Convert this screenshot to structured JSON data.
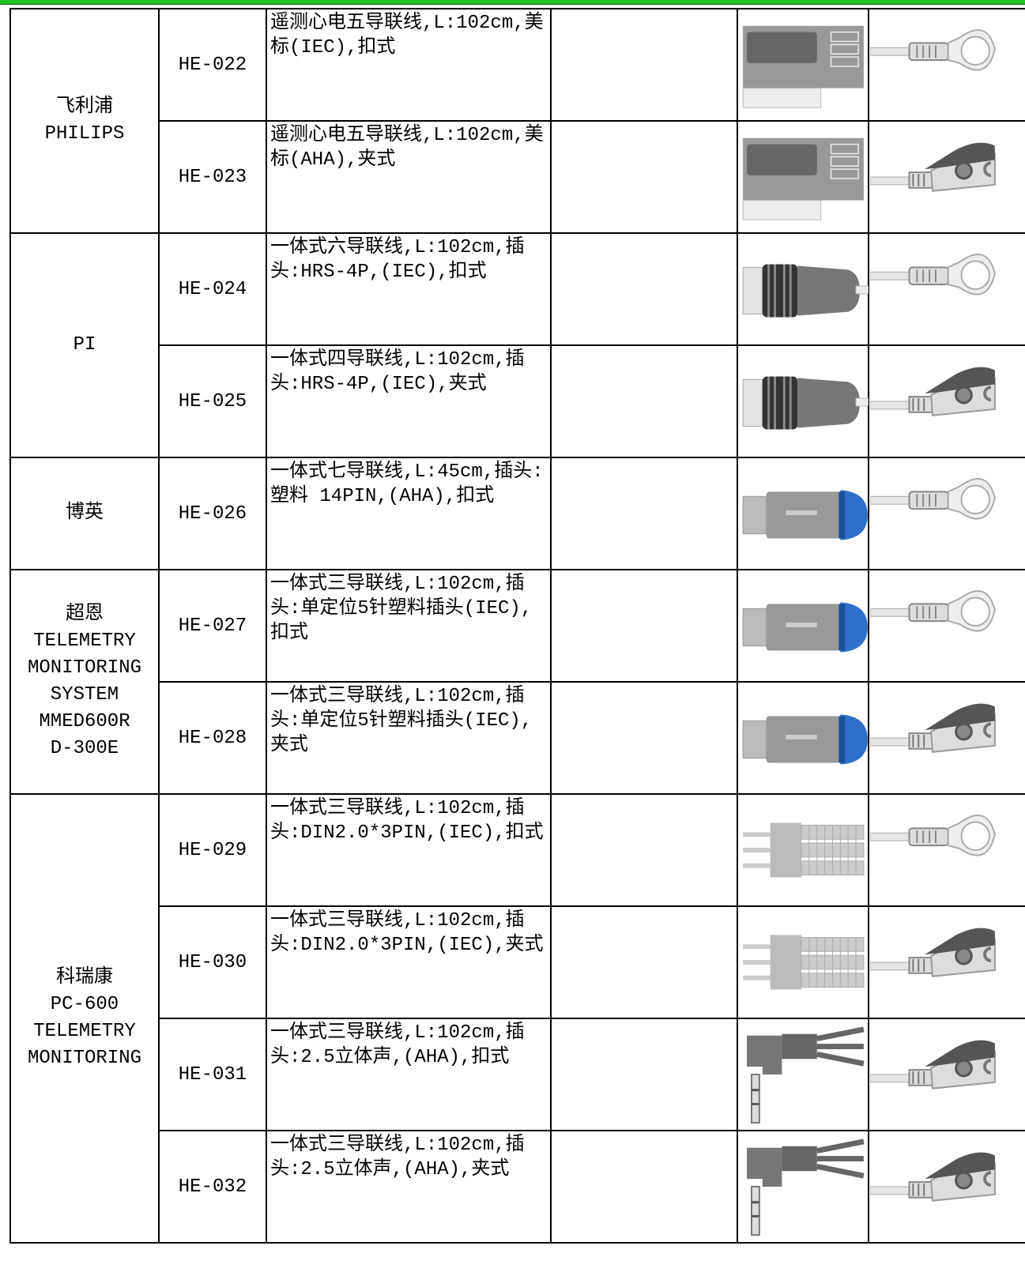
{
  "brands": [
    {
      "lines": [
        "飞利浦",
        "PHILIPS"
      ]
    },
    {
      "lines": [
        "PI"
      ]
    },
    {
      "lines": [
        "博英"
      ]
    },
    {
      "lines": [
        "超恩",
        "TELEMETRY",
        "MONITORING",
        "SYSTEM",
        "MMED600R",
        "D-300E"
      ]
    },
    {
      "lines": [
        "科瑞康",
        "PC-600",
        "TELEMETRY",
        "MONITORING"
      ]
    }
  ],
  "rows": [
    {
      "model": "HE-022",
      "description": [
        "遥测心电五导联线,L:102cm,美",
        "标(IEC),扣式"
      ]
    },
    {
      "model": "HE-023",
      "description": [
        "遥测心电五导联线,L:102cm,美",
        "标(AHA),夹式"
      ]
    },
    {
      "model": "HE-024",
      "description": [
        "一体式六导联线,L:102cm,插",
        "头:HRS-4P,(IEC),扣式"
      ]
    },
    {
      "model": "HE-025",
      "description": [
        "一体式四导联线,L:102cm,插",
        "头:HRS-4P,(IEC),夹式"
      ]
    },
    {
      "model": "HE-026",
      "description": [
        "一体式七导联线,L:45cm,插头:",
        "塑料 14PIN,(AHA),扣式"
      ]
    },
    {
      "model": "HE-027",
      "description": [
        "一体式三导联线,L:102cm,插",
        "头:单定位5针塑料插头(IEC),",
        "扣式"
      ]
    },
    {
      "model": "HE-028",
      "description": [
        "一体式三导联线,L:102cm,插",
        "头:单定位5针塑料插头(IEC),",
        "夹式"
      ]
    },
    {
      "model": "HE-029",
      "description": [
        "一体式三导联线,L:102cm,插",
        "头:DIN2.0*3PIN,(IEC),扣式"
      ]
    },
    {
      "model": "HE-030",
      "description": [
        "一体式三导联线,L:102cm,插",
        "头:DIN2.0*3PIN,(IEC),夹式"
      ]
    },
    {
      "model": "HE-031",
      "description": [
        "一体式三导联线,L:102cm,插",
        "头:2.5立体声,(AHA),扣式"
      ]
    },
    {
      "model": "HE-032",
      "description": [
        "一体式三导联线,L:102cm,插",
        "头:2.5立体声,(AHA),夹式"
      ]
    }
  ]
}
